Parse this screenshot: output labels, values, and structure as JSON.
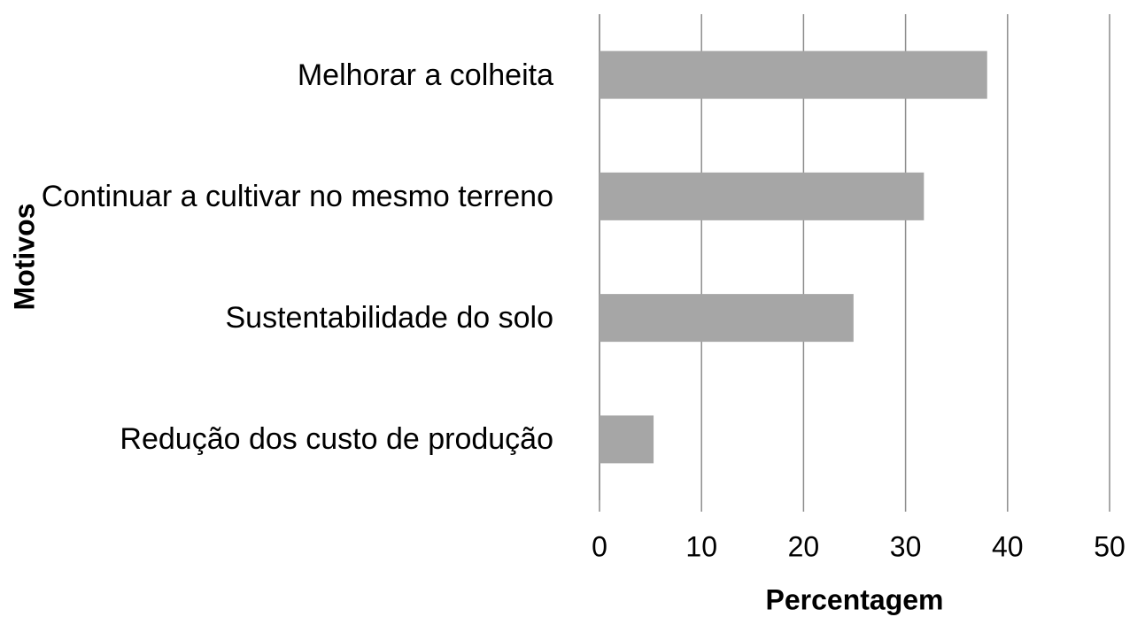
{
  "chart_data": {
    "type": "bar",
    "orientation": "horizontal",
    "x_label": "Percentagem",
    "y_label": "Motivos",
    "categories": [
      "Melhorar a colheita",
      "Continuar a cultivar no mesmo terreno",
      "Sustentabilidade do solo",
      "Redução dos custo de produção"
    ],
    "values": [
      38.0,
      31.8,
      24.9,
      5.3
    ],
    "color": "#a6a6a6",
    "xlim": [
      0,
      50
    ],
    "xticks": [
      0,
      10,
      20,
      30,
      40,
      50
    ],
    "grid": true
  }
}
